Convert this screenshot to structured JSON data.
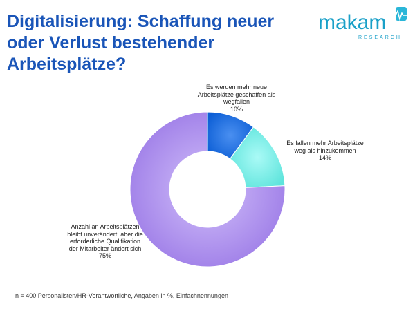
{
  "title_lines": [
    "Digitalisierung: Schaffung neuer",
    "oder Verlust bestehender",
    "Arbeitsplätze?"
  ],
  "logo": {
    "name": "makam",
    "tagline": "RESEARCH"
  },
  "chart_data": {
    "type": "pie",
    "style": "donut",
    "categories": [
      "Es werden mehr neue Arbeitsplätze geschaffen als wegfallen",
      "Es fallen mehr Arbeitsplätze weg als hinzukommen",
      "Anzahl an Arbeitsplätzen bleibt unverändert, aber die erforderliche Qualifikation der Mitarbeiter ändert sich"
    ],
    "values": [
      10,
      14,
      75
    ],
    "value_labels": [
      "10%",
      "14%",
      "75%"
    ],
    "colors": [
      "#1a73e8",
      "#7ff0ea",
      "#b89cf0"
    ],
    "label_lines": [
      [
        "Es werden mehr neue",
        "Arbeitsplätze geschaffen als",
        "wegfallen",
        "10%"
      ],
      [
        "Es fallen mehr Arbeitsplätze",
        "weg als hinzukommen",
        "14%"
      ],
      [
        "Anzahl an Arbeitsplätzen",
        "bleibt unverändert,  aber die",
        "erforderliche Qualifikation",
        "der Mitarbeiter  ändert sich",
        "75%"
      ]
    ]
  },
  "footnote": "n = 400 Personalisten/HR-Verantwortliche, Angaben in %, Einfachnennungen"
}
